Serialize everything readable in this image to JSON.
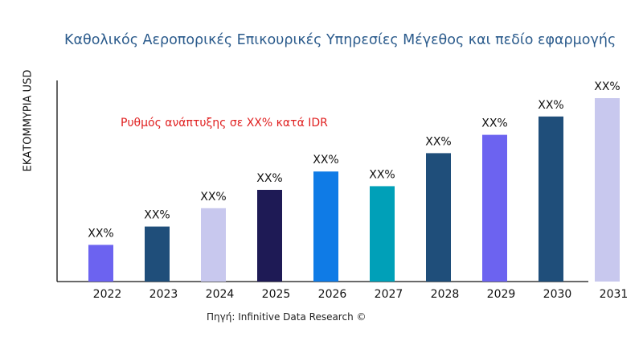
{
  "chart_data": {
    "type": "bar",
    "title": "Καθολικός Αεροπορικές Επικουρικές Υπηρεσίες Μέγεθος και πεδίο εφαρμογής",
    "xlabel": "",
    "ylabel": "ΕΚΑΤΟΜΜΥΡΙΑ USD",
    "categories": [
      "2022",
      "2023",
      "2024",
      "2025",
      "2026",
      "2027",
      "2028",
      "2029",
      "2030",
      "2031"
    ],
    "values": [
      2,
      3,
      4,
      5,
      6,
      5.2,
      7,
      8,
      9,
      10
    ],
    "data_labels": [
      "XX%",
      "XX%",
      "XX%",
      "XX%",
      "XX%",
      "XX%",
      "XX%",
      "XX%",
      "XX%",
      "XX%"
    ],
    "colors": [
      "#6c63f0",
      "#1f4e7a",
      "#c8c8ee",
      "#1e1a55",
      "#0f7be6",
      "#00a0b8",
      "#1f4e7a",
      "#6c63f0",
      "#1f4e7a",
      "#c8c8ee"
    ],
    "ylim": [
      0,
      11
    ],
    "grid": false,
    "annotation": "Ρυθμός ανάπτυξης σε XX% κατά IDR",
    "source": "Πηγή: Infinitive Data Research ©"
  }
}
